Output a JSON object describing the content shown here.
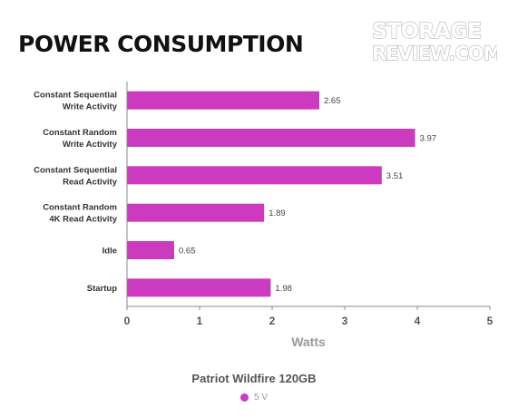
{
  "watermark": {
    "line1": "STORAGE",
    "line2": "REVIEW.COM"
  },
  "chart_data": {
    "type": "bar",
    "orientation": "horizontal",
    "title": "POWER CONSUMPTION",
    "xlabel": "Watts",
    "xlim": [
      0,
      5
    ],
    "ticks": [
      0,
      1,
      2,
      3,
      4,
      5
    ],
    "grid": false,
    "legend_position": "bottom",
    "legend_title": "Patriot Wildfire 120GB",
    "categories": [
      [
        "Constant Sequential",
        "Write Activity"
      ],
      [
        "Constant Random",
        "Write Activity"
      ],
      [
        "Constant Sequential",
        "Read Activity"
      ],
      [
        "Constant Random",
        "4K Read Activity"
      ],
      [
        "Idle"
      ],
      [
        "Startup"
      ]
    ],
    "series": [
      {
        "name": "5 V",
        "color": "#cc3ac0",
        "values": [
          2.65,
          3.97,
          3.51,
          1.89,
          0.65,
          1.98
        ]
      }
    ]
  }
}
